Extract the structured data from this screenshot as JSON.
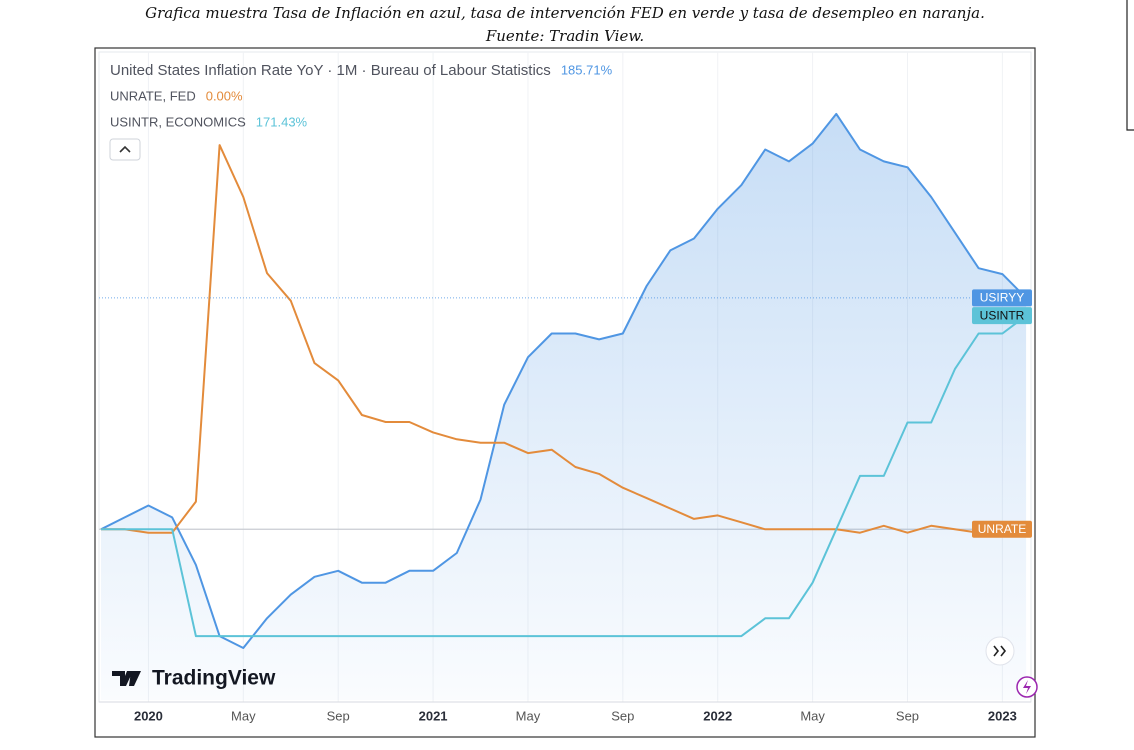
{
  "caption": [
    "Grafica muestra Tasa de Inflación en azul, tasa de intervención FED en verde y tasa de desempleo en naranja.",
    "Fuente: Tradin View."
  ],
  "chart_data": {
    "type": "line",
    "x": [
      "2019-11",
      "2019-12",
      "2020-01",
      "2020-02",
      "2020-03",
      "2020-04",
      "2020-05",
      "2020-06",
      "2020-07",
      "2020-08",
      "2020-09",
      "2020-10",
      "2020-11",
      "2020-12",
      "2021-01",
      "2021-02",
      "2021-03",
      "2021-04",
      "2021-05",
      "2021-06",
      "2021-07",
      "2021-08",
      "2021-09",
      "2021-10",
      "2021-11",
      "2021-12",
      "2022-01",
      "2022-02",
      "2022-03",
      "2022-04",
      "2022-05",
      "2022-06",
      "2022-07",
      "2022-08",
      "2022-09",
      "2022-10",
      "2022-11",
      "2022-12",
      "2023-01",
      "2023-02"
    ],
    "xticks": [
      {
        "value": "2020-01",
        "label": "2020"
      },
      {
        "value": "2020-05",
        "label": "May"
      },
      {
        "value": "2020-09",
        "label": "Sep"
      },
      {
        "value": "2021-01",
        "label": "2021"
      },
      {
        "value": "2021-05",
        "label": "May"
      },
      {
        "value": "2021-09",
        "label": "Sep"
      },
      {
        "value": "2022-01",
        "label": "2022"
      },
      {
        "value": "2022-05",
        "label": "May"
      },
      {
        "value": "2022-09",
        "label": "Sep"
      },
      {
        "value": "2023-01",
        "label": "2023"
      }
    ],
    "ylim": [
      -137,
      383
    ],
    "grid": true,
    "series": [
      {
        "name": "United States Inflation Rate YoY · 1M · Bureau of Labour Statistics",
        "tag": "USIRYY",
        "change_label": "185.71%",
        "color": "#4f96e3",
        "area": true,
        "values": [
          0,
          9.52,
          19.05,
          9.52,
          -28.57,
          -85.71,
          -95.24,
          -71.43,
          -52.38,
          -38.1,
          -33.33,
          -42.86,
          -42.86,
          -33.33,
          -33.33,
          -19.05,
          23.81,
          100,
          138.1,
          157.14,
          157.14,
          152.38,
          157.14,
          195.24,
          223.81,
          233.33,
          257.14,
          276.19,
          304.76,
          295.24,
          309.52,
          333.33,
          304.76,
          295.24,
          290.48,
          266.67,
          238.1,
          209.52,
          204.76,
          185.71
        ]
      },
      {
        "name": "UNRATE, FED",
        "tag": "UNRATE",
        "change_label": "0.00%",
        "color": "#e38b3b",
        "area": false,
        "values": [
          0,
          0,
          -2.78,
          -2.78,
          22.22,
          308.33,
          266.67,
          205.56,
          183.33,
          133.33,
          119.44,
          91.67,
          86.11,
          86.11,
          77.78,
          72.22,
          69.44,
          69.44,
          61.11,
          63.89,
          50,
          44.44,
          33.33,
          25,
          16.67,
          8.33,
          11.11,
          5.56,
          0,
          0,
          0,
          0,
          -2.78,
          2.78,
          -2.78,
          2.78,
          0,
          -2.78,
          -5.56,
          0
        ]
      },
      {
        "name": "USINTR, ECONOMICS",
        "tag": "USINTR",
        "change_label": "171.43%",
        "color": "#5cc3d8",
        "area": false,
        "values": [
          0,
          0,
          0,
          0,
          -85.71,
          -85.71,
          -85.71,
          -85.71,
          -85.71,
          -85.71,
          -85.71,
          -85.71,
          -85.71,
          -85.71,
          -85.71,
          -85.71,
          -85.71,
          -85.71,
          -85.71,
          -85.71,
          -85.71,
          -85.71,
          -85.71,
          -85.71,
          -85.71,
          -85.71,
          -85.71,
          -85.71,
          -71.43,
          -71.43,
          -42.86,
          0,
          42.86,
          42.86,
          85.71,
          85.71,
          128.57,
          157.14,
          157.14,
          171.43
        ]
      }
    ],
    "logo": "TradingView"
  }
}
